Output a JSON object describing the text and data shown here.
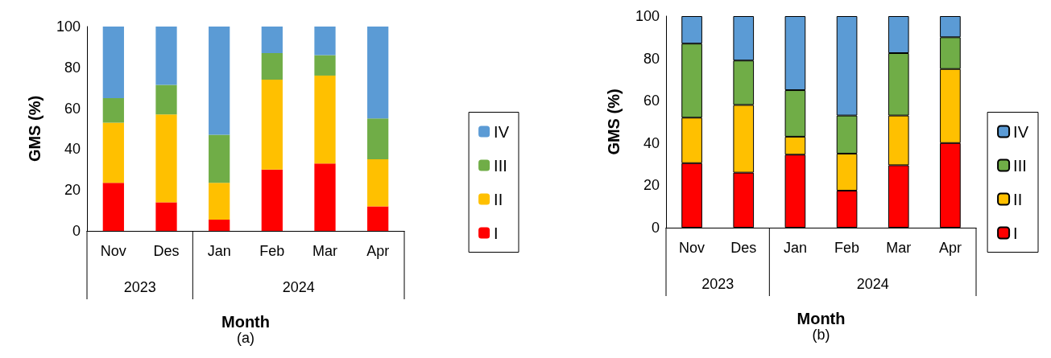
{
  "chart_data": [
    {
      "type": "bar",
      "stacked": true,
      "categories": [
        "Nov",
        "Des",
        "Jan",
        "Feb",
        "Mar",
        "Apr"
      ],
      "xlabel": "Month",
      "ylabel": "GMS (%)",
      "ylim": [
        0,
        100
      ],
      "yticks": [
        0,
        20,
        40,
        60,
        80,
        100
      ],
      "grid": false,
      "legend": "right",
      "annotations": [
        "2023",
        "2024",
        "(a)"
      ],
      "series": [
        {
          "name": "I",
          "color": "#ff0000",
          "values": [
            23.5,
            14,
            5.5,
            30,
            33,
            12
          ]
        },
        {
          "name": "II",
          "color": "#ffc000",
          "values": [
            29.5,
            43,
            18,
            44,
            43,
            23
          ]
        },
        {
          "name": "III",
          "color": "#70ad47",
          "values": [
            12,
            14.5,
            23.5,
            13,
            10,
            20
          ]
        },
        {
          "name": "IV",
          "color": "#5b9bd5",
          "values": [
            35,
            28.5,
            53,
            13,
            14,
            45
          ]
        }
      ]
    },
    {
      "type": "bar",
      "stacked": true,
      "categories": [
        "Nov",
        "Des",
        "Jan",
        "Feb",
        "Mar",
        "Apr"
      ],
      "xlabel": "Month",
      "ylabel": "GMS (%)",
      "ylim": [
        0,
        100
      ],
      "yticks": [
        0,
        20,
        40,
        60,
        80,
        100
      ],
      "grid": false,
      "legend": "right",
      "annotations": [
        "2023",
        "2024",
        "(b)"
      ],
      "series": [
        {
          "name": "I",
          "color": "#ff0000",
          "values": [
            30.5,
            26,
            34.5,
            17.5,
            29.5,
            40
          ]
        },
        {
          "name": "II",
          "color": "#ffc000",
          "values": [
            21.5,
            32,
            8.5,
            17.5,
            23.5,
            35
          ]
        },
        {
          "name": "III",
          "color": "#70ad47",
          "values": [
            35,
            21,
            22,
            18,
            29.5,
            15
          ]
        },
        {
          "name": "IV",
          "color": "#5b9bd5",
          "values": [
            13,
            21,
            35,
            47,
            17.5,
            10
          ]
        }
      ]
    }
  ]
}
